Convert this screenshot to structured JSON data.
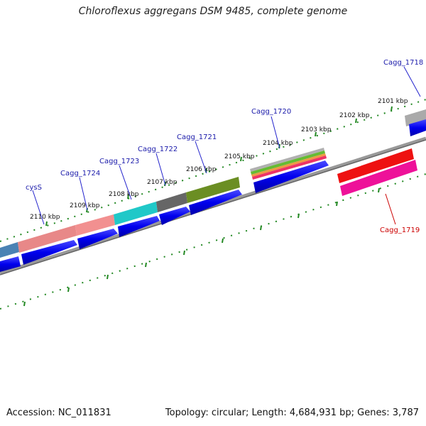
{
  "title": "Chloroflexus aggregans DSM 9485, complete genome",
  "footer": {
    "accession": "Accession: NC_011831",
    "summary": "Topology: circular; Length: 4,684,931 bp; Genes: 3,787"
  },
  "colors": {
    "forward_gene": "#0000ee",
    "track_line": "#888888",
    "tick": "#228822",
    "label_blue": "#1a1aaa",
    "label_red": "#cc0000"
  },
  "kbp_labels": [
    "2110 kbp",
    "2109 kbp",
    "2108 kbp",
    "2107 kbp",
    "2106 kbp",
    "2105 kbp",
    "2104 kbp",
    "2103 kbp",
    "2102 kbp",
    "2101 kbp"
  ],
  "gene_labels": [
    {
      "text": "cysS",
      "color": "blue"
    },
    {
      "text": "Cagg_1724",
      "color": "blue"
    },
    {
      "text": "Cagg_1723",
      "color": "blue"
    },
    {
      "text": "Cagg_1722",
      "color": "blue"
    },
    {
      "text": "Cagg_1721",
      "color": "blue"
    },
    {
      "text": "Cagg_1720",
      "color": "blue"
    },
    {
      "text": "Cagg_1718",
      "color": "blue"
    },
    {
      "text": "Cagg_1719",
      "color": "red"
    }
  ]
}
